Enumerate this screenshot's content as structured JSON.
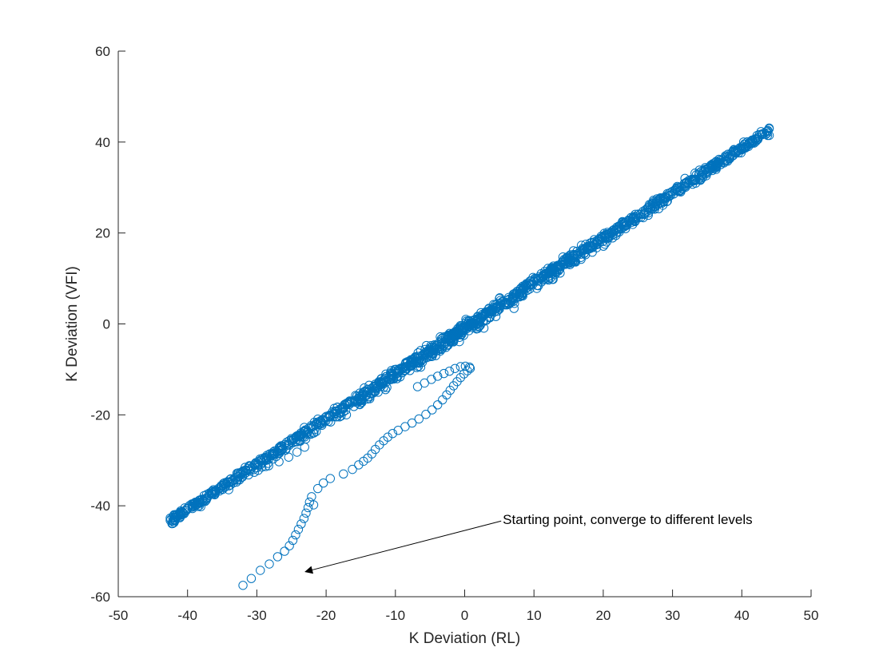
{
  "chart_data": {
    "type": "scatter",
    "title": "",
    "xlabel": "K Deviation (RL)",
    "ylabel": "K Deviation (VFI)",
    "xlim": [
      -50,
      50
    ],
    "ylim": [
      -60,
      60
    ],
    "xticks": [
      -50,
      -40,
      -30,
      -20,
      -10,
      0,
      10,
      20,
      30,
      40,
      50
    ],
    "yticks": [
      -60,
      -40,
      -20,
      0,
      20,
      40,
      60
    ],
    "grid": false,
    "marker": "open-circle",
    "color": "#0072BD",
    "main_cluster": {
      "x_start": -42.5,
      "x_end": 44,
      "y_at_x_start": -43,
      "y_at_x_end": 43
    },
    "series": [
      {
        "values": [
          {
            "x": -32,
            "y": -57.5
          },
          {
            "x": -30.8,
            "y": -56
          },
          {
            "x": -29.5,
            "y": -54.2
          },
          {
            "x": -28.2,
            "y": -52.8
          },
          {
            "x": -27,
            "y": -51.2
          },
          {
            "x": -26,
            "y": -50
          },
          {
            "x": -25.3,
            "y": -48.8
          },
          {
            "x": -24.8,
            "y": -47.6
          },
          {
            "x": -24.4,
            "y": -46.4
          },
          {
            "x": -24,
            "y": -45.2
          },
          {
            "x": -23.6,
            "y": -44
          },
          {
            "x": -23.2,
            "y": -42.8
          },
          {
            "x": -22.9,
            "y": -41.6
          },
          {
            "x": -22.6,
            "y": -40.4
          },
          {
            "x": -22.4,
            "y": -39.2
          },
          {
            "x": -22.1,
            "y": -38
          },
          {
            "x": -21.8,
            "y": -39.8
          },
          {
            "x": -21.2,
            "y": -36.2
          },
          {
            "x": -20.4,
            "y": -35
          },
          {
            "x": -19.4,
            "y": -34
          },
          {
            "x": -17.5,
            "y": -33
          },
          {
            "x": -16.2,
            "y": -32
          },
          {
            "x": -15.3,
            "y": -31
          },
          {
            "x": -14.6,
            "y": -30.2
          },
          {
            "x": -14,
            "y": -29.5
          },
          {
            "x": -13.4,
            "y": -28.6
          },
          {
            "x": -12.9,
            "y": -27.6
          },
          {
            "x": -12.3,
            "y": -26.6
          },
          {
            "x": -11.7,
            "y": -25.7
          },
          {
            "x": -11.1,
            "y": -24.9
          },
          {
            "x": -10.4,
            "y": -24.1
          },
          {
            "x": -9.6,
            "y": -23.4
          },
          {
            "x": -8.6,
            "y": -22.6
          },
          {
            "x": -7.6,
            "y": -21.8
          },
          {
            "x": -6.6,
            "y": -20.9
          },
          {
            "x": -5.6,
            "y": -19.9
          },
          {
            "x": -4.7,
            "y": -18.9
          },
          {
            "x": -3.9,
            "y": -17.8
          },
          {
            "x": -3.2,
            "y": -16.7
          },
          {
            "x": -2.6,
            "y": -15.6
          },
          {
            "x": -2.1,
            "y": -14.6
          },
          {
            "x": -1.6,
            "y": -13.6
          },
          {
            "x": -1.1,
            "y": -12.7
          },
          {
            "x": -0.6,
            "y": -11.8
          },
          {
            "x": -0.1,
            "y": -11
          },
          {
            "x": 0.4,
            "y": -10.3
          },
          {
            "x": 0.8,
            "y": -9.8
          },
          {
            "x": 0.7,
            "y": -9.5
          },
          {
            "x": 0.1,
            "y": -9.3
          },
          {
            "x": -0.6,
            "y": -9.4
          },
          {
            "x": -1.4,
            "y": -9.8
          },
          {
            "x": -2.2,
            "y": -10.4
          },
          {
            "x": -3,
            "y": -10.9
          },
          {
            "x": -3.9,
            "y": -11.5
          },
          {
            "x": -4.8,
            "y": -12.2
          },
          {
            "x": -5.8,
            "y": -13
          },
          {
            "x": -6.8,
            "y": -13.8
          }
        ]
      },
      {
        "values": [
          {
            "x": -42.5,
            "y": -43.2
          },
          {
            "x": -41.8,
            "y": -42.6
          },
          {
            "x": -41,
            "y": -41.8
          },
          {
            "x": -40.2,
            "y": -41.1
          },
          {
            "x": -39.3,
            "y": -40.3
          },
          {
            "x": -38.3,
            "y": -39.4
          },
          {
            "x": -37.2,
            "y": -38.4
          },
          {
            "x": -36.1,
            "y": -37.4
          },
          {
            "x": -35,
            "y": -36.4
          },
          {
            "x": -33.8,
            "y": -35.4
          },
          {
            "x": -32.5,
            "y": -34.3
          },
          {
            "x": -31.2,
            "y": -33.2
          },
          {
            "x": -29.8,
            "y": -32.2
          },
          {
            "x": -28.3,
            "y": -31.2
          },
          {
            "x": -26.8,
            "y": -30.3
          },
          {
            "x": -25.4,
            "y": -29.3
          },
          {
            "x": -24.2,
            "y": -28.2
          },
          {
            "x": -23.1,
            "y": -27.1
          }
        ]
      }
    ],
    "annotations": [
      {
        "text": "Starting point, converge to different levels",
        "text_x": 5.5,
        "text_y": -43,
        "arrow_to_x": -23,
        "arrow_to_y": -54.5
      }
    ]
  }
}
